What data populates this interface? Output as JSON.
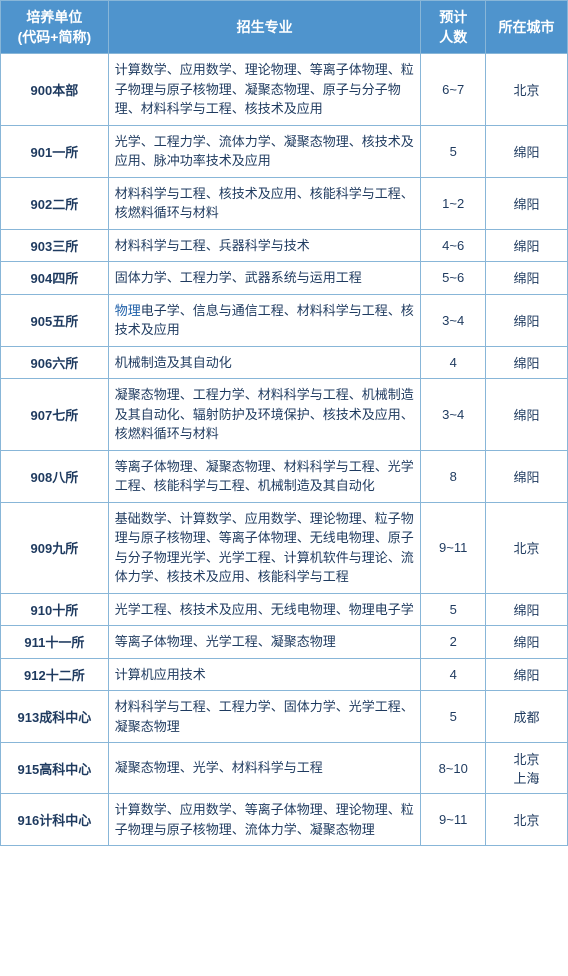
{
  "header": {
    "unit": "培养单位\n(代码+简称)",
    "major": "招生专业",
    "count": "预计\n人数",
    "city": "所在城市"
  },
  "rows": [
    {
      "unit": "900本部",
      "major": "计算数学、应用数学、理论物理、等离子体物理、粒子物理与原子核物理、凝聚态物理、原子与分子物理、材料科学与工程、核技术及应用",
      "count": "6~7",
      "city": "北京"
    },
    {
      "unit": "901一所",
      "major": "光学、工程力学、流体力学、凝聚态物理、核技术及应用、脉冲功率技术及应用",
      "count": "5",
      "city": "绵阳"
    },
    {
      "unit": "902二所",
      "major": "材料科学与工程、核技术及应用、核能科学与工程、核燃料循环与材料",
      "count": "1~2",
      "city": "绵阳"
    },
    {
      "unit": "903三所",
      "major": "材料科学与工程、兵器科学与技术",
      "count": "4~6",
      "city": "绵阳"
    },
    {
      "unit": "904四所",
      "major": "固体力学、工程力学、武器系统与运用工程",
      "count": "5~6",
      "city": "绵阳"
    },
    {
      "unit": "905五所",
      "major": "物理电子学、信息与通信工程、材料科学与工程、核技术及应用",
      "major_linked_prefix": "物理",
      "count": "3~4",
      "city": "绵阳"
    },
    {
      "unit": "906六所",
      "major": "机械制造及其自动化",
      "count": "4",
      "city": "绵阳"
    },
    {
      "unit": "907七所",
      "major": "凝聚态物理、工程力学、材料科学与工程、机械制造及其自动化、辐射防护及环境保护、核技术及应用、核燃料循环与材料",
      "count": "3~4",
      "city": "绵阳"
    },
    {
      "unit": "908八所",
      "major": "等离子体物理、凝聚态物理、材料科学与工程、光学工程、核能科学与工程、机械制造及其自动化",
      "count": "8",
      "city": "绵阳"
    },
    {
      "unit": "909九所",
      "major": "基础数学、计算数学、应用数学、理论物理、粒子物理与原子核物理、等离子体物理、无线电物理、原子与分子物理光学、光学工程、计算机软件与理论、流体力学、核技术及应用、核能科学与工程",
      "count": "9~11",
      "city": "北京"
    },
    {
      "unit": "910十所",
      "major": "光学工程、核技术及应用、无线电物理、物理电子学",
      "count": "5",
      "city": "绵阳"
    },
    {
      "unit": "911十一所",
      "major": "等离子体物理、光学工程、凝聚态物理",
      "count": "2",
      "city": "绵阳"
    },
    {
      "unit": "912十二所",
      "major": "计算机应用技术",
      "count": "4",
      "city": "绵阳"
    },
    {
      "unit": "913成科中心",
      "major": "材料科学与工程、工程力学、固体力学、光学工程、凝聚态物理",
      "count": "5",
      "city": "成都"
    },
    {
      "unit": "915高科中心",
      "major": "凝聚态物理、光学、材料科学与工程",
      "count": "8~10",
      "city": "北京\n上海"
    },
    {
      "unit": "916计科中心",
      "major": "计算数学、应用数学、等离子体物理、理论物理、粒子物理与原子核物理、流体力学、凝聚态物理",
      "count": "9~11",
      "city": "北京"
    }
  ],
  "colors": {
    "header_bg": "#4f94cd",
    "header_fg": "#ffffff",
    "border": "#88b6d8",
    "cell_fg": "#1e3a5f",
    "link_fg": "#1e5fa8"
  }
}
